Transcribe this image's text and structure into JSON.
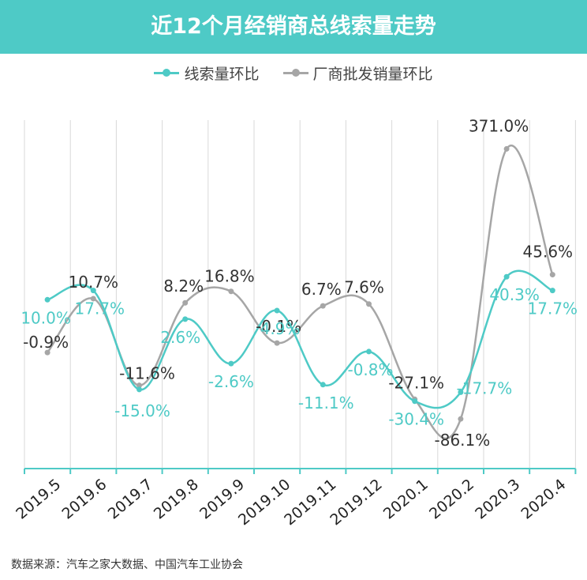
{
  "title": "近12个月经销商总线索量走势",
  "source": "数据来源：汽车之家大数据、中国汽车工业协会",
  "colors": {
    "teal": "#4ecac6",
    "gray": "#a6a6a6",
    "grid": "#d9d9d9",
    "axis": "#4ecac6"
  },
  "chart_data": {
    "type": "line",
    "title": "近12个月经销商总线索量走势",
    "categories": [
      "2019.5",
      "2019.6",
      "2019.7",
      "2019.8",
      "2019.9",
      "2019.10",
      "2019.11",
      "2019.12",
      "2020.1",
      "2020.2",
      "2020.3",
      "2020.4"
    ],
    "series": [
      {
        "name": "线索量环比",
        "color": "#4ecac6",
        "values": [
          10.0,
          17.7,
          -15.0,
          2.6,
          -2.6,
          4.9,
          -11.1,
          -0.8,
          -30.4,
          -17.7,
          40.3,
          17.7
        ],
        "labels": [
          "10.0%",
          "17.7%",
          "-15.0%",
          "2.6%",
          "-2.6%",
          "4.9%",
          "-11.1%",
          "-0.8%",
          "-30.4%",
          "-17.7%",
          "40.3%",
          "17.7%"
        ]
      },
      {
        "name": "厂商批发销量环比",
        "color": "#a6a6a6",
        "values": [
          -0.9,
          10.7,
          -11.6,
          8.2,
          16.8,
          -0.1,
          6.7,
          7.6,
          -27.1,
          -86.1,
          371.0,
          45.6
        ],
        "labels": [
          "-0.9%",
          "10.7%",
          "-11.6%",
          "8.2%",
          "16.8%",
          "-0.1%",
          "6.7%",
          "7.6%",
          "-27.1%",
          "-86.1%",
          "371.0%",
          "45.6%"
        ]
      }
    ],
    "grid": true,
    "legend": "top-center"
  }
}
